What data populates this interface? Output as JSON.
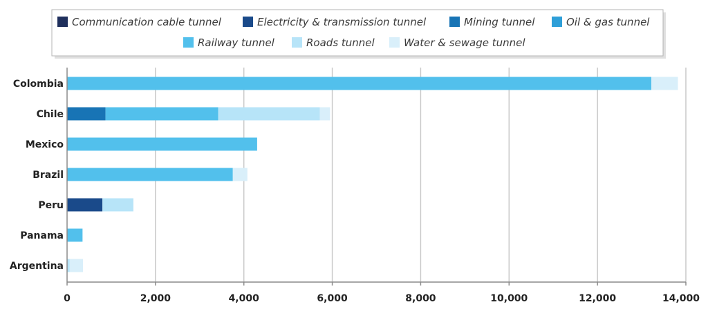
{
  "chart_data": {
    "type": "bar",
    "orientation": "horizontal",
    "stacked": true,
    "categories": [
      "Colombia",
      "Chile",
      "Mexico",
      "Brazil",
      "Peru",
      "Panama",
      "Argentina"
    ],
    "series": [
      {
        "name": "Communication cable tunnel",
        "color": "#1f2f5c",
        "values": [
          0,
          0,
          0,
          0,
          0,
          0,
          0
        ]
      },
      {
        "name": "Electricity & transmission tunnel",
        "color": "#1a4a8a",
        "values": [
          0,
          0,
          0,
          0,
          800,
          0,
          0
        ]
      },
      {
        "name": "Mining tunnel",
        "color": "#1874b5",
        "values": [
          0,
          870,
          0,
          0,
          0,
          0,
          0
        ]
      },
      {
        "name": "Oil & gas tunnel",
        "color": "#2e9fd8",
        "values": [
          0,
          0,
          0,
          0,
          0,
          0,
          0
        ]
      },
      {
        "name": "Railway tunnel",
        "color": "#52c0ec",
        "values": [
          13220,
          2550,
          4300,
          3750,
          0,
          350,
          0
        ]
      },
      {
        "name": "Roads tunnel",
        "color": "#b7e4f8",
        "values": [
          0,
          2300,
          0,
          0,
          700,
          0,
          60
        ]
      },
      {
        "name": "Water & sewage tunnel",
        "color": "#d9effa",
        "values": [
          600,
          230,
          0,
          330,
          0,
          0,
          300
        ]
      }
    ],
    "xlim": [
      0,
      14000
    ],
    "xticks": [
      "0",
      "2,000",
      "4,000",
      "6,000",
      "8,000",
      "10,000",
      "12,000",
      "14,000"
    ],
    "grid": "vertical",
    "legend_position": "top"
  }
}
